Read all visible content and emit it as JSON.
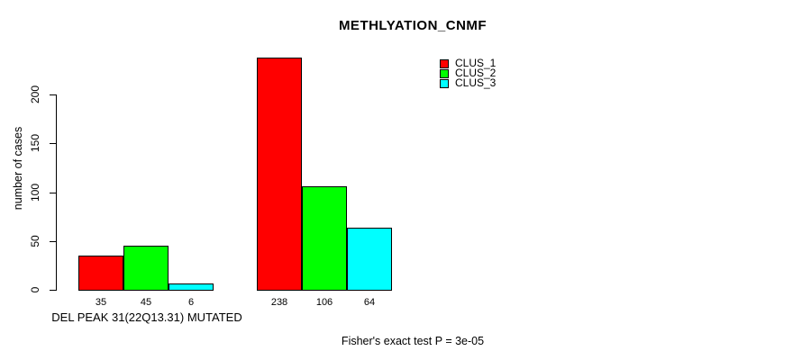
{
  "title": "METHLYATION_CNMF",
  "y_axis": {
    "label": "number of cases",
    "tick_labels": [
      "0",
      "50",
      "100",
      "150",
      "200"
    ]
  },
  "x_axis": {
    "label": "DEL PEAK 31(22Q13.31) MUTATED"
  },
  "legend": {
    "entries": [
      {
        "label": "CLUS_1",
        "color": "#ff0000"
      },
      {
        "label": "CLUS_2",
        "color": "#00ff00"
      },
      {
        "label": "CLUS_3",
        "color": "#00ffff"
      }
    ]
  },
  "footnote": "Fisher's exact test P = 3e-05",
  "colors": {
    "clus_1": "#ff0000",
    "clus_2": "#00ff00",
    "clus_3": "#00ffff",
    "axis": "#000000",
    "background": "#ffffff"
  },
  "chart_data": {
    "type": "bar",
    "title": "METHLYATION_CNMF",
    "xlabel": "DEL PEAK 31(22Q13.31) MUTATED",
    "ylabel": "number of cases",
    "annotation": "Fisher's exact test P = 3e-05",
    "groups": 2,
    "series": [
      {
        "name": "CLUS_1",
        "color": "#ff0000",
        "values": [
          35,
          238
        ]
      },
      {
        "name": "CLUS_2",
        "color": "#00ff00",
        "values": [
          45,
          106
        ]
      },
      {
        "name": "CLUS_3",
        "color": "#00ffff",
        "values": [
          6,
          64
        ]
      }
    ],
    "bar_value_labels": [
      [
        35,
        45,
        6
      ],
      [
        238,
        106,
        64
      ]
    ],
    "yticks": [
      0,
      50,
      100,
      150,
      200
    ],
    "ylim": [
      0,
      200
    ],
    "grid": false,
    "legend_position": "top-right"
  }
}
